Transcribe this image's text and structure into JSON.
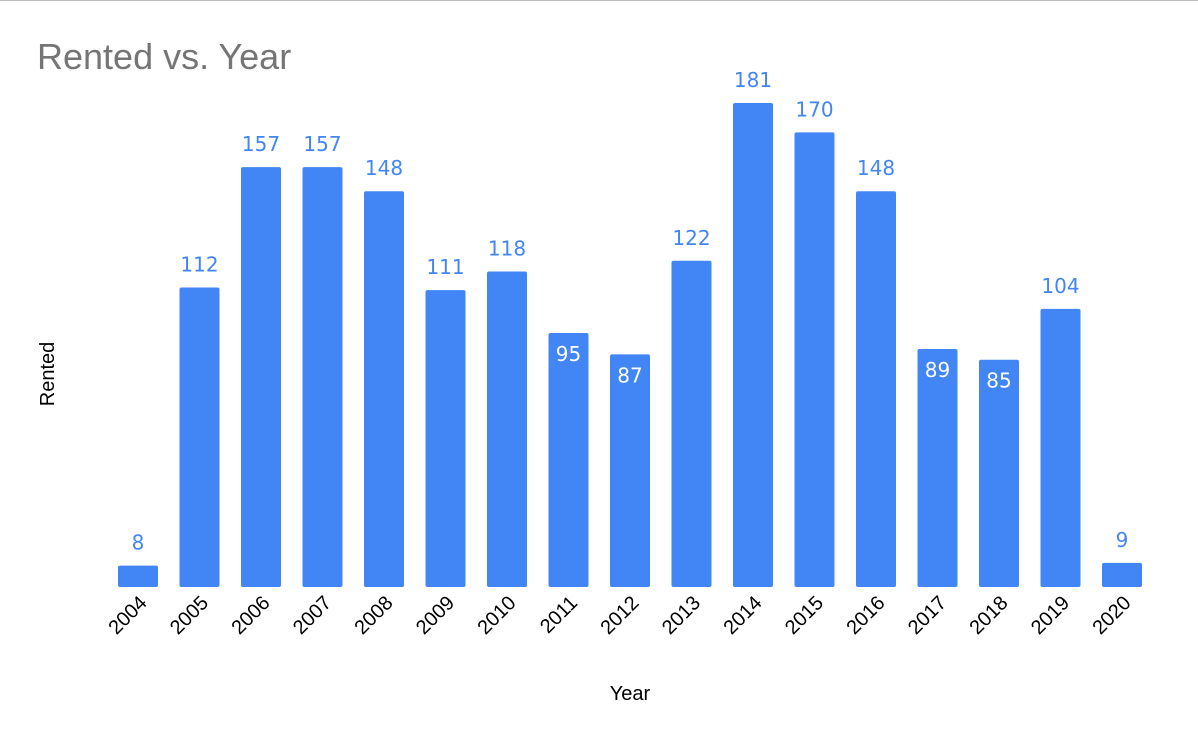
{
  "chart_data": {
    "type": "bar",
    "title": "Rented vs. Year",
    "xlabel": "Year",
    "ylabel": "Rented",
    "categories": [
      "2004",
      "2005",
      "2006",
      "2007",
      "2008",
      "2009",
      "2010",
      "2011",
      "2012",
      "2013",
      "2014",
      "2015",
      "2016",
      "2017",
      "2018",
      "2019",
      "2020"
    ],
    "values": [
      8,
      112,
      157,
      157,
      148,
      111,
      118,
      95,
      87,
      122,
      181,
      170,
      148,
      89,
      85,
      104,
      9
    ],
    "ylim": [
      0,
      181
    ],
    "grid": false,
    "legend": "none",
    "colors": {
      "bar": "#4285f4",
      "label_outside": "#4285f4",
      "label_inside": "#ffffff",
      "title": "#757575"
    }
  }
}
